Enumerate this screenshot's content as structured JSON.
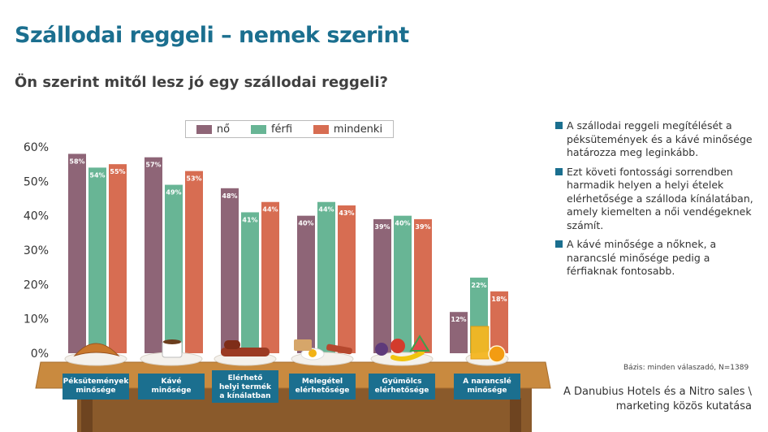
{
  "title": "Szállodai reggeli – nemek szerint",
  "subtitle": "Ön szerint mitől lesz jó egy szállodai reggeli?",
  "colors": {
    "no": "#8e6577",
    "ferfi": "#68b595",
    "mindenki": "#d76d52",
    "title": "#1b6f8f",
    "table": "#c98a3f",
    "label_box": "#1b6f8f"
  },
  "chart_data": {
    "type": "bar",
    "categories": [
      "Péksütemények minősége",
      "Kávé minősége",
      "Elérhető helyi termék a kínálatban",
      "Melegétel elérhetősége",
      "Gyümölcs elérhetősége",
      "A narancslé minősége"
    ],
    "series": [
      {
        "name": "nő",
        "values": [
          58,
          57,
          48,
          40,
          39,
          12
        ],
        "labels": [
          "58%",
          "57%",
          "48%",
          "40%",
          "39%",
          "12%"
        ]
      },
      {
        "name": "férfi",
        "values": [
          54,
          49,
          41,
          44,
          40,
          22
        ],
        "labels": [
          "54%",
          "49%",
          "41%",
          "44%",
          "40%",
          "22%"
        ]
      },
      {
        "name": "mindenki",
        "values": [
          55,
          53,
          44,
          43,
          39,
          18
        ],
        "labels": [
          "55%",
          "53%",
          "44%",
          "43%",
          "39%",
          "18%"
        ]
      }
    ],
    "category_labels": [
      [
        "Péksütemények",
        "minősége"
      ],
      [
        "Kávé",
        "minősége"
      ],
      [
        "Elérhető",
        "helyi termék",
        "a kínálatban"
      ],
      [
        "Melegétel",
        "elérhetősége"
      ],
      [
        "Gyümölcs",
        "elérhetősége"
      ],
      [
        "A narancslé",
        "minősége"
      ]
    ],
    "y_ticks": [
      "0%",
      "10%",
      "20%",
      "30%",
      "40%",
      "50%",
      "60%"
    ],
    "ylim": [
      0,
      60
    ],
    "grid": false,
    "legend_position": "top"
  },
  "bullets": [
    "A szállodai reggeli megítélését a péksütemények és a kávé minősége határozza meg leginkább.",
    "Ezt követi fontossági sorrendben harmadik helyen a helyi ételek elérhetősége a szálloda kínálatában, amely kiemelten a női vendégeknek számít.",
    "A kávé minősége a nőknek, a narancslé minősége pedig a férfiaknak fontosabb."
  ],
  "basis": "Bázis: minden válaszadó, N=1389",
  "credit": "A Danubius Hotels és a Nitro sales \\ marketing közös kutatása"
}
